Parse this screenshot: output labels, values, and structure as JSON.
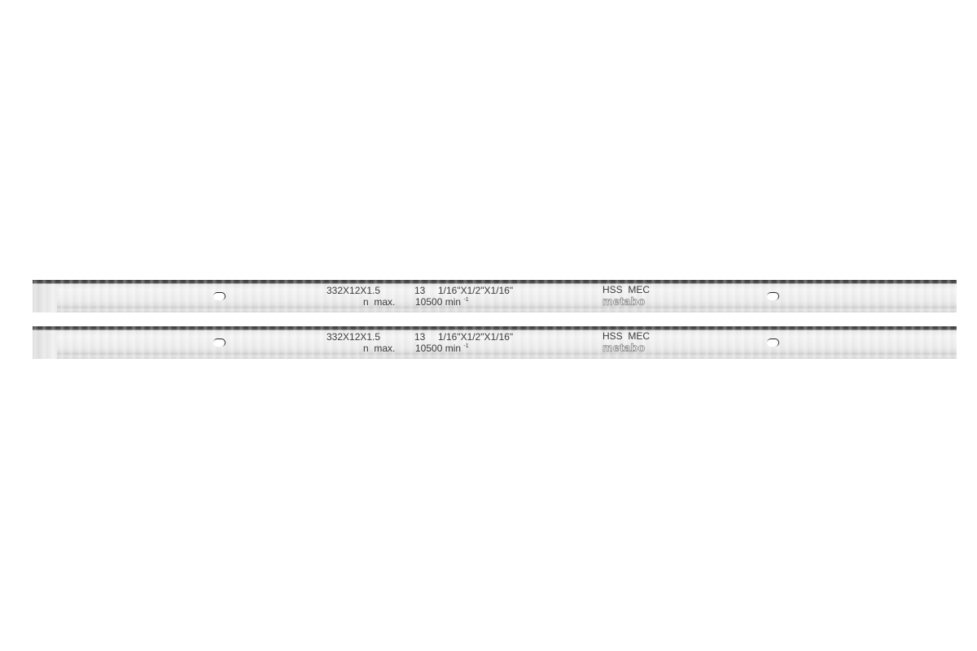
{
  "blades": [
    {
      "dimensions": "332X12X1.5",
      "number": "13",
      "imperial": "1/16\"X1/2\"X1/16\"",
      "speed_label": "n  max.",
      "speed_value": "10500 min",
      "speed_unit_exp": "-1",
      "material": "HSS  MEC",
      "brand_logo": "metabo"
    },
    {
      "dimensions": "332X12X1.5",
      "number": "13",
      "imperial": "1/16\"X1/2\"X1/16\"",
      "speed_label": "n  max.",
      "speed_value": "10500 min",
      "speed_unit_exp": "-1",
      "material": "HSS  MEC",
      "brand_logo": "metabo"
    }
  ],
  "colors": {
    "background": "#ffffff",
    "steel": "#ececec",
    "edge": "#3a3a3a"
  }
}
